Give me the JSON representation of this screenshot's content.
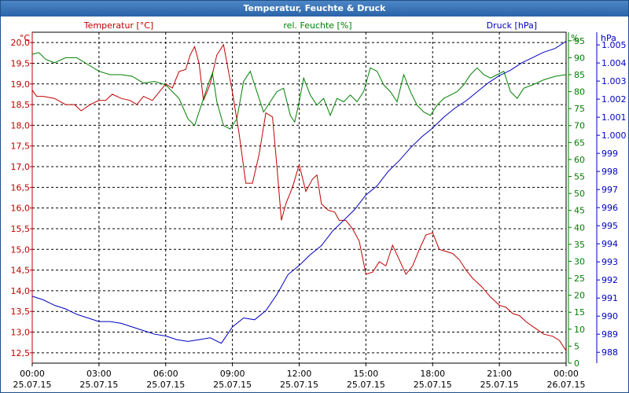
{
  "window": {
    "title": "Temperatur, Feuchte & Druck"
  },
  "colors": {
    "temperature": "#c00000",
    "humidity": "#008000",
    "pressure": "#0000c0",
    "grid": "#000000"
  },
  "chart_data": {
    "type": "line",
    "title": "Temperatur, Feuchte & Druck",
    "grid": true,
    "x_ticks": [
      {
        "time": "00:00",
        "date": "25.07.15"
      },
      {
        "time": "03:00",
        "date": "25.07.15"
      },
      {
        "time": "06:00",
        "date": "25.07.15"
      },
      {
        "time": "09:00",
        "date": "25.07.15"
      },
      {
        "time": "12:00",
        "date": "25.07.15"
      },
      {
        "time": "15:00",
        "date": "25.07.15"
      },
      {
        "time": "18:00",
        "date": "25.07.15"
      },
      {
        "time": "21:00",
        "date": "25.07.15"
      },
      {
        "time": "00:00",
        "date": "26.07.15"
      }
    ],
    "xlim": [
      0,
      24
    ],
    "axes": {
      "temperature": {
        "unit": "°C",
        "min": 12.25,
        "max": 20.25,
        "ticks": [
          "12,5",
          "13,0",
          "13,5",
          "14,0",
          "14,5",
          "15,0",
          "15,5",
          "16,0",
          "16,5",
          "17,0",
          "17,5",
          "18,0",
          "18,5",
          "19,0",
          "19,5",
          "20,0"
        ]
      },
      "humidity": {
        "unit": "%",
        "min": 0,
        "max": 97.5,
        "ticks": [
          "0",
          "5",
          "10",
          "15",
          "20",
          "25",
          "30",
          "35",
          "40",
          "45",
          "50",
          "55",
          "60",
          "65",
          "70",
          "75",
          "80",
          "85",
          "90",
          "95"
        ]
      },
      "pressure": {
        "unit": "hPa",
        "min": 987.4,
        "max": 1005.7,
        "ticks": [
          "988",
          "989",
          "990",
          "991",
          "992",
          "993",
          "994",
          "995",
          "996",
          "997",
          "998",
          "999",
          "1.000",
          "1.001",
          "1.002",
          "1.003",
          "1.004",
          "1.005"
        ]
      }
    },
    "series": [
      {
        "name": "Temperatur [°C]",
        "axis": "temperature",
        "points": [
          [
            0,
            18.85
          ],
          [
            0.2,
            18.7
          ],
          [
            0.5,
            18.7
          ],
          [
            1,
            18.65
          ],
          [
            1.5,
            18.5
          ],
          [
            1.9,
            18.5
          ],
          [
            2.2,
            18.35
          ],
          [
            2.6,
            18.5
          ],
          [
            3,
            18.6
          ],
          [
            3.3,
            18.6
          ],
          [
            3.6,
            18.75
          ],
          [
            4,
            18.65
          ],
          [
            4.4,
            18.6
          ],
          [
            4.7,
            18.5
          ],
          [
            5,
            18.7
          ],
          [
            5.4,
            18.6
          ],
          [
            5.7,
            18.8
          ],
          [
            6,
            19.0
          ],
          [
            6.3,
            18.9
          ],
          [
            6.6,
            19.3
          ],
          [
            6.9,
            19.35
          ],
          [
            7.1,
            19.7
          ],
          [
            7.3,
            19.9
          ],
          [
            7.5,
            19.5
          ],
          [
            7.7,
            18.6
          ],
          [
            8,
            19.0
          ],
          [
            8.3,
            19.7
          ],
          [
            8.6,
            19.95
          ],
          [
            9,
            18.8
          ],
          [
            9.3,
            17.8
          ],
          [
            9.6,
            16.6
          ],
          [
            9.9,
            16.6
          ],
          [
            10.2,
            17.3
          ],
          [
            10.5,
            18.3
          ],
          [
            10.8,
            18.2
          ],
          [
            11,
            17.0
          ],
          [
            11.2,
            15.7
          ],
          [
            11.4,
            16.1
          ],
          [
            11.7,
            16.5
          ],
          [
            12,
            17.05
          ],
          [
            12.3,
            16.4
          ],
          [
            12.6,
            16.7
          ],
          [
            12.8,
            16.8
          ],
          [
            13,
            16.1
          ],
          [
            13.3,
            15.95
          ],
          [
            13.6,
            15.9
          ],
          [
            13.8,
            15.7
          ],
          [
            14.1,
            15.7
          ],
          [
            14.4,
            15.5
          ],
          [
            14.7,
            15.2
          ],
          [
            15,
            14.4
          ],
          [
            15.3,
            14.45
          ],
          [
            15.6,
            14.7
          ],
          [
            15.9,
            14.6
          ],
          [
            16.2,
            15.1
          ],
          [
            16.5,
            14.75
          ],
          [
            16.8,
            14.4
          ],
          [
            17.1,
            14.6
          ],
          [
            17.4,
            15.0
          ],
          [
            17.7,
            15.35
          ],
          [
            18,
            15.4
          ],
          [
            18.3,
            15.0
          ],
          [
            18.6,
            14.95
          ],
          [
            18.9,
            14.9
          ],
          [
            19.2,
            14.75
          ],
          [
            19.5,
            14.5
          ],
          [
            19.8,
            14.3
          ],
          [
            20.2,
            14.1
          ],
          [
            20.6,
            13.85
          ],
          [
            21,
            13.65
          ],
          [
            21.3,
            13.6
          ],
          [
            21.6,
            13.45
          ],
          [
            21.9,
            13.4
          ],
          [
            22.2,
            13.25
          ],
          [
            22.6,
            13.1
          ],
          [
            23,
            12.95
          ],
          [
            23.4,
            12.9
          ],
          [
            23.7,
            12.8
          ],
          [
            24,
            12.55
          ]
        ]
      },
      {
        "name": "rel. Feuchte [%]",
        "axis": "humidity",
        "points": [
          [
            0,
            91
          ],
          [
            0.3,
            91.5
          ],
          [
            0.6,
            89.5
          ],
          [
            1,
            88.5
          ],
          [
            1.5,
            90
          ],
          [
            2,
            90
          ],
          [
            2.5,
            88
          ],
          [
            3,
            86
          ],
          [
            3.5,
            85
          ],
          [
            4,
            85
          ],
          [
            4.5,
            84.5
          ],
          [
            5,
            82.5
          ],
          [
            5.5,
            83
          ],
          [
            6,
            82
          ],
          [
            6.3,
            80
          ],
          [
            6.6,
            78
          ],
          [
            7,
            72
          ],
          [
            7.3,
            70
          ],
          [
            7.6,
            76
          ],
          [
            7.9,
            82
          ],
          [
            8.1,
            85.5
          ],
          [
            8.3,
            77
          ],
          [
            8.6,
            70
          ],
          [
            8.9,
            69
          ],
          [
            9.2,
            72
          ],
          [
            9.5,
            83
          ],
          [
            9.8,
            86
          ],
          [
            10.1,
            80
          ],
          [
            10.4,
            74
          ],
          [
            10.7,
            77
          ],
          [
            11,
            80
          ],
          [
            11.3,
            81
          ],
          [
            11.6,
            73
          ],
          [
            11.8,
            71
          ],
          [
            12,
            77
          ],
          [
            12.2,
            84
          ],
          [
            12.5,
            79
          ],
          [
            12.8,
            76
          ],
          [
            13.1,
            78
          ],
          [
            13.4,
            73
          ],
          [
            13.7,
            78
          ],
          [
            14,
            77
          ],
          [
            14.3,
            79
          ],
          [
            14.6,
            77
          ],
          [
            14.9,
            80
          ],
          [
            15.2,
            87
          ],
          [
            15.5,
            86
          ],
          [
            15.8,
            82
          ],
          [
            16.1,
            80
          ],
          [
            16.4,
            77
          ],
          [
            16.7,
            85
          ],
          [
            17,
            80
          ],
          [
            17.3,
            76
          ],
          [
            17.6,
            74
          ],
          [
            17.9,
            73
          ],
          [
            18.2,
            76
          ],
          [
            18.5,
            78
          ],
          [
            18.8,
            79
          ],
          [
            19.1,
            80
          ],
          [
            19.4,
            82
          ],
          [
            19.7,
            85
          ],
          [
            20,
            87
          ],
          [
            20.3,
            85
          ],
          [
            20.6,
            84
          ],
          [
            20.9,
            85
          ],
          [
            21.2,
            86
          ],
          [
            21.5,
            80
          ],
          [
            21.8,
            78
          ],
          [
            22.1,
            81
          ],
          [
            22.5,
            82
          ],
          [
            23,
            83.5
          ],
          [
            23.5,
            84.5
          ],
          [
            24,
            85
          ]
        ]
      },
      {
        "name": "Druck [hPa]",
        "axis": "pressure",
        "points": [
          [
            0,
            991.1
          ],
          [
            0.5,
            990.9
          ],
          [
            1,
            990.6
          ],
          [
            1.5,
            990.4
          ],
          [
            2,
            990.1
          ],
          [
            2.5,
            989.9
          ],
          [
            3,
            989.7
          ],
          [
            3.5,
            989.7
          ],
          [
            4,
            989.6
          ],
          [
            4.5,
            989.4
          ],
          [
            5,
            989.2
          ],
          [
            5.5,
            989.0
          ],
          [
            6,
            988.9
          ],
          [
            6.5,
            988.7
          ],
          [
            7,
            988.6
          ],
          [
            7.5,
            988.7
          ],
          [
            8,
            988.8
          ],
          [
            8.5,
            988.5
          ],
          [
            9,
            989.4
          ],
          [
            9.5,
            989.9
          ],
          [
            10,
            989.8
          ],
          [
            10.5,
            990.3
          ],
          [
            11,
            991.2
          ],
          [
            11.5,
            992.3
          ],
          [
            12,
            992.8
          ],
          [
            12.5,
            993.4
          ],
          [
            13,
            993.9
          ],
          [
            13.5,
            994.7
          ],
          [
            14,
            995.3
          ],
          [
            14.5,
            995.9
          ],
          [
            15,
            996.7
          ],
          [
            15.5,
            997.2
          ],
          [
            16,
            998.0
          ],
          [
            16.5,
            998.6
          ],
          [
            17,
            999.3
          ],
          [
            17.5,
            999.9
          ],
          [
            18,
            1000.4
          ],
          [
            18.5,
            1001.0
          ],
          [
            19,
            1001.5
          ],
          [
            19.5,
            1001.9
          ],
          [
            20,
            1002.4
          ],
          [
            20.5,
            1002.9
          ],
          [
            21,
            1003.3
          ],
          [
            21.5,
            1003.6
          ],
          [
            22,
            1004.0
          ],
          [
            22.5,
            1004.3
          ],
          [
            23,
            1004.6
          ],
          [
            23.5,
            1004.8
          ],
          [
            24,
            1005.2
          ]
        ]
      }
    ]
  }
}
